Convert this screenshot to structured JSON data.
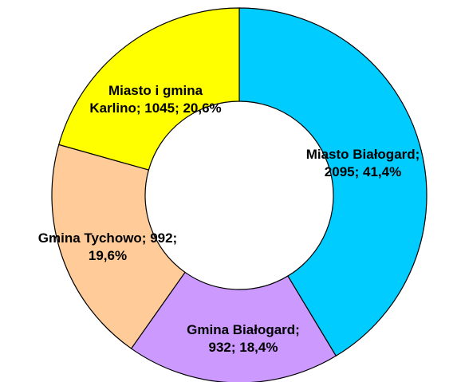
{
  "chart_data": {
    "type": "donut",
    "values": [
      2095,
      932,
      992,
      1045
    ],
    "value_labels": [
      "Miasto Białogard;\n2095; 41,4%",
      "Gmina Białogard;\n932; 18,4%",
      "Gmina Tychowo; 992;\n19,6%",
      "Miasto i gmina\nKarlino; 1045; 20,6%"
    ],
    "colors": [
      "#00ccff",
      "#cc99ff",
      "#ffcc99",
      "#ffff00"
    ]
  }
}
